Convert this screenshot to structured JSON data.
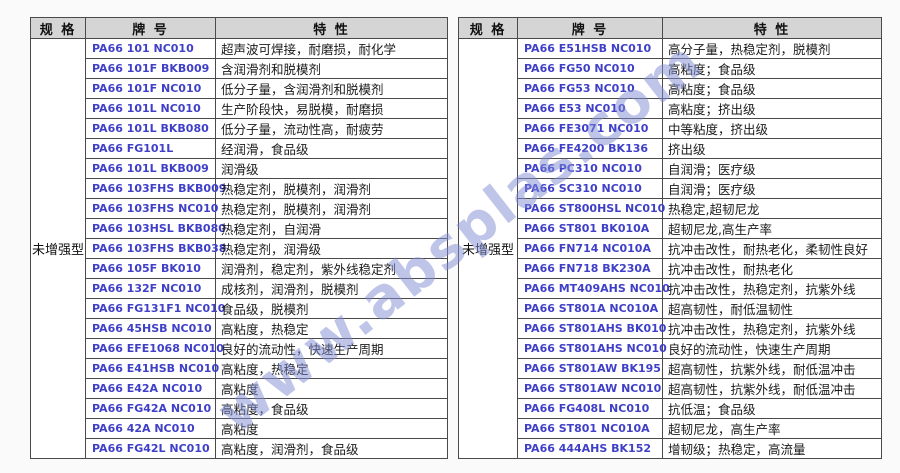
{
  "page": {
    "watermark_text": "www.absplas.com"
  },
  "colors": {
    "grade_text": "#3f3fc8",
    "header_bg": "#d5d5d5",
    "border": "#4a4a4a",
    "feature_text": "#1a1a1a",
    "watermark": "#808cd2"
  },
  "left_table": {
    "headers": [
      "规 格",
      "牌 号",
      "特 性"
    ],
    "spec": "未增强型",
    "rows": [
      {
        "grade": "PA66 101 NC010",
        "feature": "超声波可焊接，耐磨损，耐化学"
      },
      {
        "grade": "PA66 101F BKB009",
        "feature": "含润滑剂和脱模剂"
      },
      {
        "grade": "PA66 101F NC010",
        "feature": "低分子量，含润滑剂和脱模剂"
      },
      {
        "grade": "PA66 101L NC010",
        "feature": "生产阶段快，易脱模，耐磨损"
      },
      {
        "grade": "PA66 101L BKB080",
        "feature": "低分子量，流动性高，耐疲劳"
      },
      {
        "grade": "PA66 FG101L",
        "feature": "经润滑，食品级"
      },
      {
        "grade": "PA66 101L BKB009",
        "feature": "润滑级"
      },
      {
        "grade": "PA66 103FHS BKB009",
        "feature": "热稳定剂，脱模剂，润滑剂"
      },
      {
        "grade": "PA66 103FHS NC010",
        "feature": "热稳定剂，脱模剂，润滑剂"
      },
      {
        "grade": "PA66 103HSL BKB080",
        "feature": "热稳定剂，自润滑"
      },
      {
        "grade": "PA66 103FHS BKB038",
        "feature": "热稳定剂，润滑级"
      },
      {
        "grade": "PA66 105F BK010",
        "feature": "润滑剂，稳定剂，紫外线稳定剂"
      },
      {
        "grade": "PA66 132F NC010",
        "feature": "成核剂，润滑剂，脱模剂"
      },
      {
        "grade": "PA66 FG131F1 NC010",
        "feature": "食品级，脱模剂"
      },
      {
        "grade": "PA66 45HSB NC010",
        "feature": "高粘度，热稳定"
      },
      {
        "grade": "PA66 EFE1068 NC010",
        "feature": "良好的流动性，快速生产周期"
      },
      {
        "grade": "PA66 E41HSB NC010",
        "feature": "高粘度，热稳定"
      },
      {
        "grade": "PA66 E42A NC010",
        "feature": "高粘度"
      },
      {
        "grade": "PA66 FG42A NC010",
        "feature": "高粘度，食品级"
      },
      {
        "grade": "PA66 42A NC010",
        "feature": "高粘度"
      },
      {
        "grade": "PA66 FG42L NC010",
        "feature": "高粘度，润滑剂，食品级"
      }
    ]
  },
  "right_table": {
    "headers": [
      "规 格",
      "牌 号",
      "特 性"
    ],
    "spec": "未增强型",
    "rows": [
      {
        "grade": "PA66 E51HSB NC010",
        "feature": "高分子量，热稳定剂，脱模剂"
      },
      {
        "grade": "PA66 FG50 NC010",
        "feature": "高粘度；食品级"
      },
      {
        "grade": "PA66 FG53 NC010",
        "feature": "高粘度；食品级"
      },
      {
        "grade": "PA66 E53 NC010",
        "feature": "高粘度；挤出级"
      },
      {
        "grade": "PA66 FE3071 NC010",
        "feature": "中等粘度，挤出级"
      },
      {
        "grade": "PA66 FE4200 BK136",
        "feature": "挤出级"
      },
      {
        "grade": "PA66 PC310 NC010",
        "feature": "自润滑；医疗级"
      },
      {
        "grade": "PA66 SC310 NC010",
        "feature": "自润滑；医疗级"
      },
      {
        "grade": "PA66 ST800HSL NC010",
        "feature": "热稳定,超韧尼龙"
      },
      {
        "grade": "PA66 ST801 BK010A",
        "feature": "超韧尼龙,高生产率"
      },
      {
        "grade": "PA66 FN714 NC010A",
        "feature": "抗冲击改性，耐热老化，柔韧性良好"
      },
      {
        "grade": "PA66 FN718 BK230A",
        "feature": "抗冲击改性，耐热老化"
      },
      {
        "grade": "PA66 MT409AHS NC010",
        "feature": "抗冲击改性，热稳定剂，抗紫外线"
      },
      {
        "grade": "PA66 ST801A NC010A",
        "feature": "超高韧性，耐低温韧性"
      },
      {
        "grade": "PA66 ST801AHS BK010",
        "feature": "抗冲击改性，热稳定剂，抗紫外线"
      },
      {
        "grade": "PA66 ST801AHS NC010",
        "feature": "良好的流动性，快速生产周期"
      },
      {
        "grade": "PA66 ST801AW BK195",
        "feature": "超高韧性，抗紫外线，耐低温冲击"
      },
      {
        "grade": "PA66 ST801AW NC010",
        "feature": "超高韧性，抗紫外线，耐低温冲击"
      },
      {
        "grade": "PA66 FG408L NC010",
        "feature": "抗低温；食品级"
      },
      {
        "grade": "PA66 ST801 NC010A",
        "feature": "超韧尼龙，高生产率"
      },
      {
        "grade": "PA66 444AHS BK152",
        "feature": "增韧级；热稳定，高流量"
      }
    ]
  }
}
